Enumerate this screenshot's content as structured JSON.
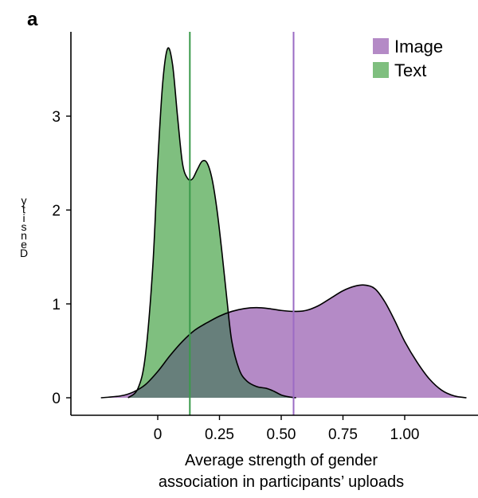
{
  "panel_label": "a",
  "colors": {
    "image_fill": "#b48ac6",
    "text_fill": "#7fbf7f",
    "overlap_fill": "#677f7b",
    "image_line": "#9b6bc4",
    "text_line": "#3a9a4a",
    "axis": "#000000"
  },
  "chart_data": {
    "type": "area",
    "xlabel": [
      "Average strength of gender",
      "association in participants’ uploads"
    ],
    "ylabel": "Density",
    "xlim": [
      -0.3,
      1.27
    ],
    "ylim": [
      -0.1,
      3.9
    ],
    "x_ticks": [
      0,
      0.25,
      0.5,
      0.75,
      1.0
    ],
    "x_tick_labels": [
      "0",
      "0.25",
      "0.50",
      "0.75",
      "1.00"
    ],
    "y_ticks": [
      0,
      1,
      2,
      3
    ],
    "y_tick_labels": [
      "0",
      "1",
      "2",
      "3"
    ],
    "legend_position": "top-right",
    "series": [
      {
        "name": "Image",
        "color_key": "image_fill",
        "mean_line": 0.55,
        "x": [
          -0.23,
          -0.15,
          -0.1,
          -0.05,
          0.0,
          0.05,
          0.1,
          0.15,
          0.2,
          0.25,
          0.3,
          0.35,
          0.4,
          0.45,
          0.5,
          0.55,
          0.6,
          0.65,
          0.7,
          0.75,
          0.8,
          0.84,
          0.88,
          0.92,
          0.96,
          1.0,
          1.05,
          1.1,
          1.15,
          1.2,
          1.25
        ],
        "y": [
          0.0,
          0.02,
          0.06,
          0.14,
          0.28,
          0.45,
          0.6,
          0.72,
          0.8,
          0.87,
          0.92,
          0.95,
          0.96,
          0.95,
          0.93,
          0.92,
          0.93,
          0.98,
          1.06,
          1.14,
          1.19,
          1.2,
          1.16,
          1.02,
          0.82,
          0.6,
          0.38,
          0.2,
          0.08,
          0.02,
          0.0
        ]
      },
      {
        "name": "Text",
        "color_key": "text_fill",
        "mean_line": 0.13,
        "x": [
          -0.12,
          -0.08,
          -0.05,
          -0.02,
          0.0,
          0.02,
          0.04,
          0.06,
          0.08,
          0.1,
          0.12,
          0.14,
          0.16,
          0.18,
          0.2,
          0.22,
          0.24,
          0.26,
          0.28,
          0.3,
          0.33,
          0.36,
          0.4,
          0.44,
          0.47,
          0.5,
          0.53,
          0.56
        ],
        "y": [
          0.0,
          0.1,
          0.45,
          1.4,
          2.5,
          3.35,
          3.72,
          3.55,
          3.0,
          2.5,
          2.34,
          2.33,
          2.43,
          2.52,
          2.5,
          2.33,
          2.0,
          1.55,
          1.05,
          0.6,
          0.3,
          0.18,
          0.12,
          0.1,
          0.07,
          0.03,
          0.01,
          0.0
        ]
      }
    ]
  }
}
